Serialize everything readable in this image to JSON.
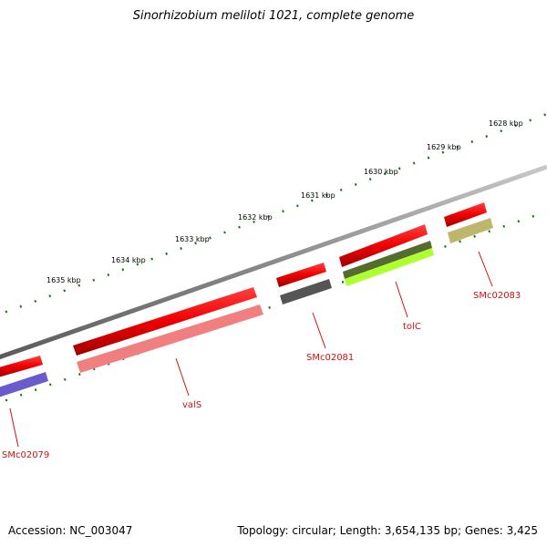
{
  "title": "Sinorhizobium meliloti 1021, complete genome",
  "footer": {
    "accession": "Accession: NC_003047",
    "topology": "Topology: circular; Length: 3,654,135 bp; Genes: 3,425"
  },
  "ruler": {
    "ticks": [
      "1628 kbp",
      "1629 kbp",
      "1630 kbp",
      "1631 kbp",
      "1632 kbp",
      "1633 kbp",
      "1634 kbp",
      "1635 kbp"
    ]
  },
  "genes": [
    {
      "name": "SMc02079",
      "strand": "minus",
      "color": "#6a5acd"
    },
    {
      "name": "valS",
      "strand": "minus",
      "color": "#f08080"
    },
    {
      "name": "SMc02081",
      "strand": "minus",
      "color": "#555555"
    },
    {
      "name": "tolC",
      "strand": "minus",
      "colors": [
        "#556b2f",
        "#adff2f"
      ]
    },
    {
      "name": "SMc02083",
      "strand": "minus",
      "color": "#bdb76b"
    }
  ],
  "colors": {
    "backbone": "#808080",
    "cds_plus_marker": "#ff0000",
    "tick": "#1a7a1a",
    "label": "#d01010"
  }
}
